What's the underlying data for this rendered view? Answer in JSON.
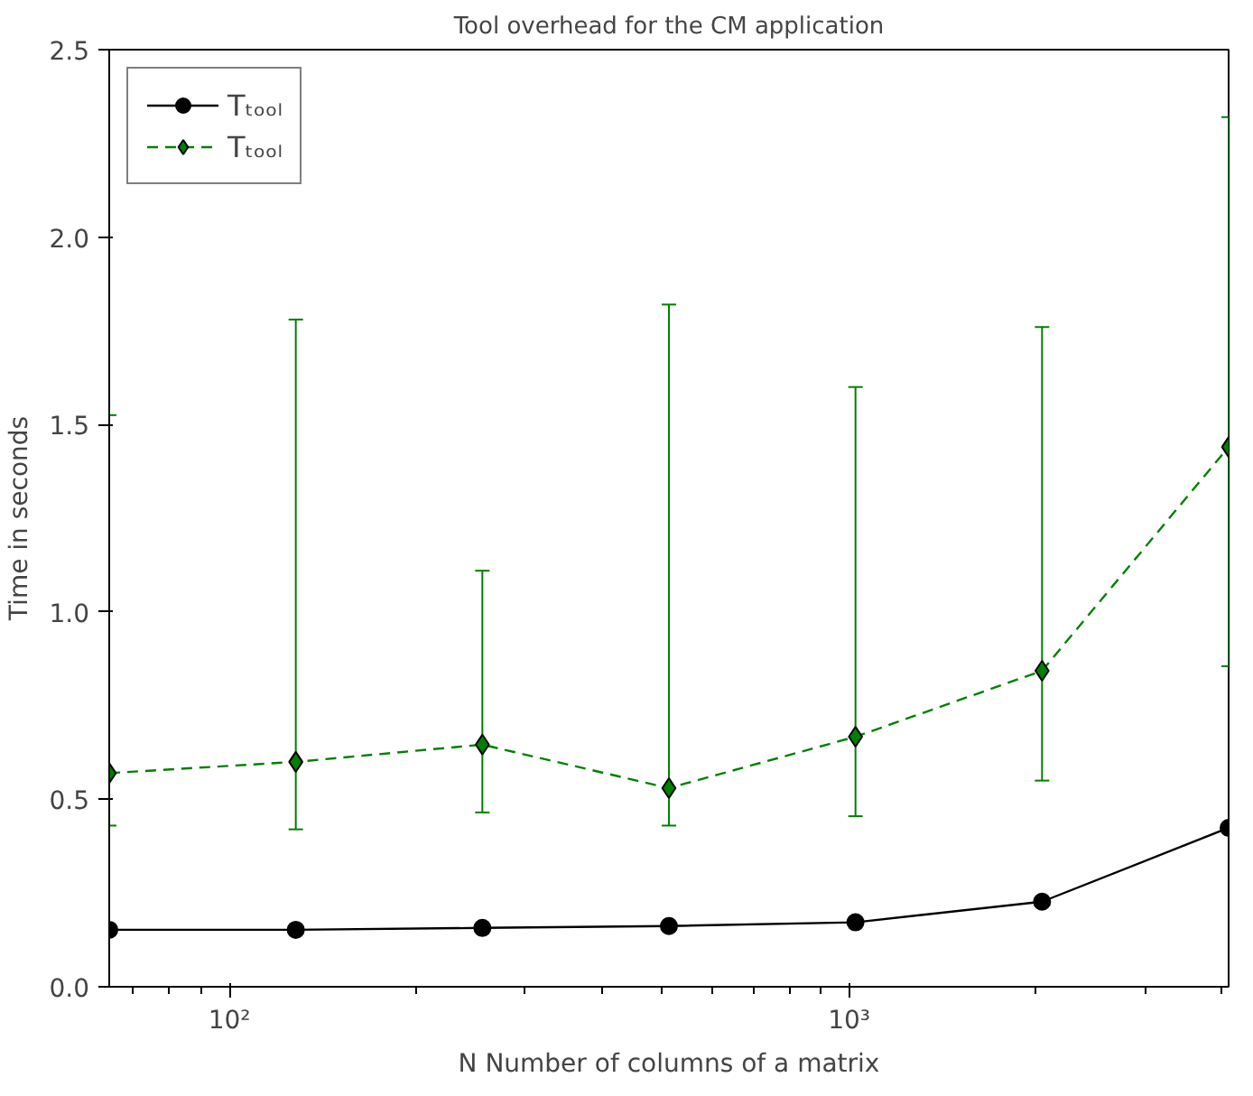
{
  "chart_data": {
    "type": "line",
    "title": "Tool overhead for the CM application",
    "xlabel": "N Number of columns of a matrix",
    "ylabel": "Time in seconds",
    "x": [
      64,
      128,
      256,
      512,
      1024,
      2048,
      4096
    ],
    "log": "x",
    "xlim": [
      64,
      4096
    ],
    "xticks": [
      {
        "value": 100,
        "label": "10²"
      },
      {
        "value": 1000,
        "label": "10³"
      }
    ],
    "ylim": [
      0,
      2.5
    ],
    "yticks": [
      {
        "value": 0,
        "label": "0.0"
      },
      {
        "value": 0.5,
        "label": "0.5"
      },
      {
        "value": 1,
        "label": "1.0"
      },
      {
        "value": 1.5,
        "label": "1.5"
      },
      {
        "value": 2,
        "label": "2.0"
      },
      {
        "value": 2.5,
        "label": "2.5"
      }
    ],
    "grid": false,
    "legend": "top left",
    "series": [
      {
        "name": "Tₜₒₒₗ",
        "color": "#000000",
        "marker": "circle",
        "line_style": "solid",
        "values": [
          0.152,
          0.152,
          0.157,
          0.162,
          0.172,
          0.227,
          0.424
        ]
      },
      {
        "name": "Tₜₒₒₗ",
        "color": "#008000",
        "marker": "diamond",
        "line_style": "dashed",
        "values": [
          0.57,
          0.6,
          0.646,
          0.53,
          0.667,
          0.843,
          1.44
        ],
        "errors": [
          [
            0.43,
            1.525
          ],
          [
            0.42,
            1.78
          ],
          [
            0.465,
            1.11
          ],
          [
            0.43,
            1.82
          ],
          [
            0.455,
            1.6
          ],
          [
            0.55,
            1.76
          ],
          [
            0.855,
            2.32
          ]
        ]
      }
    ]
  }
}
